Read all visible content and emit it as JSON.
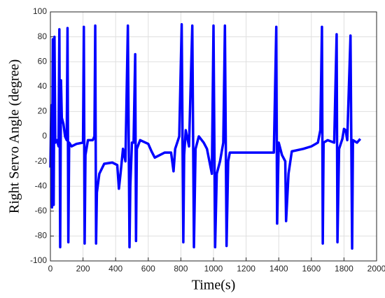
{
  "chart_data": {
    "type": "line",
    "xlabel": "Time(s)",
    "ylabel": "Right Servo Angle (degree)",
    "xlim": [
      0,
      2000
    ],
    "xticks": [
      0,
      200,
      400,
      600,
      800,
      1000,
      1200,
      1400,
      1600,
      1800,
      2000
    ],
    "ylim": [
      -100,
      100
    ],
    "yticks": [
      -100,
      -80,
      -60,
      -40,
      -20,
      0,
      20,
      40,
      60,
      80,
      100
    ],
    "grid": true,
    "series": [
      {
        "color": "#0000ff",
        "x": [
          0,
          5,
          10,
          15,
          20,
          25,
          30,
          40,
          50,
          55,
          60,
          65,
          70,
          80,
          90,
          100,
          105,
          110,
          115,
          130,
          160,
          200,
          205,
          210,
          215,
          230,
          260,
          270,
          275,
          280,
          285,
          300,
          330,
          380,
          410,
          420,
          430,
          445,
          460,
          475,
          485,
          490,
          500,
          510,
          520,
          525,
          530,
          550,
          600,
          620,
          640,
          700,
          740,
          755,
          765,
          790,
          805,
          815,
          820,
          830,
          850,
          870,
          880,
          890,
          910,
          940,
          960,
          990,
          1000,
          1010,
          1020,
          1040,
          1060,
          1070,
          1080,
          1090,
          1100,
          1200,
          1300,
          1370,
          1385,
          1390,
          1400,
          1420,
          1440,
          1445,
          1460,
          1480,
          1550,
          1600,
          1640,
          1655,
          1665,
          1670,
          1675,
          1700,
          1740,
          1755,
          1760,
          1770,
          1790,
          1800,
          1810,
          1820,
          1840,
          1850,
          1855,
          1880,
          1900
        ],
        "values": [
          -25,
          25,
          -57,
          78,
          -55,
          80,
          -5,
          -3,
          -8,
          86,
          -89,
          45,
          15,
          10,
          0,
          -3,
          87,
          -85,
          -5,
          -8,
          -6,
          -5,
          88,
          -86,
          -15,
          -3,
          -3,
          0,
          89,
          -86,
          -45,
          -30,
          -22,
          -21,
          -23,
          -42,
          -30,
          -10,
          -20,
          89,
          -89,
          -40,
          -5,
          -5,
          66,
          -84,
          -10,
          -3,
          -6,
          -12,
          -17,
          -13,
          -13,
          -28,
          -10,
          0,
          90,
          -85,
          -15,
          5,
          -8,
          89,
          -89,
          -10,
          0,
          -5,
          -10,
          -30,
          89,
          -89,
          -30,
          -20,
          -5,
          89,
          -88,
          -20,
          -13,
          -13,
          -13,
          -13,
          88,
          -70,
          -5,
          -15,
          -20,
          -68,
          -30,
          -12,
          -10,
          -8,
          -5,
          5,
          88,
          -86,
          -5,
          -3,
          -5,
          82,
          -85,
          -10,
          -2,
          6,
          5,
          -3,
          81,
          -90,
          -3,
          -5,
          -2
        ]
      }
    ]
  }
}
